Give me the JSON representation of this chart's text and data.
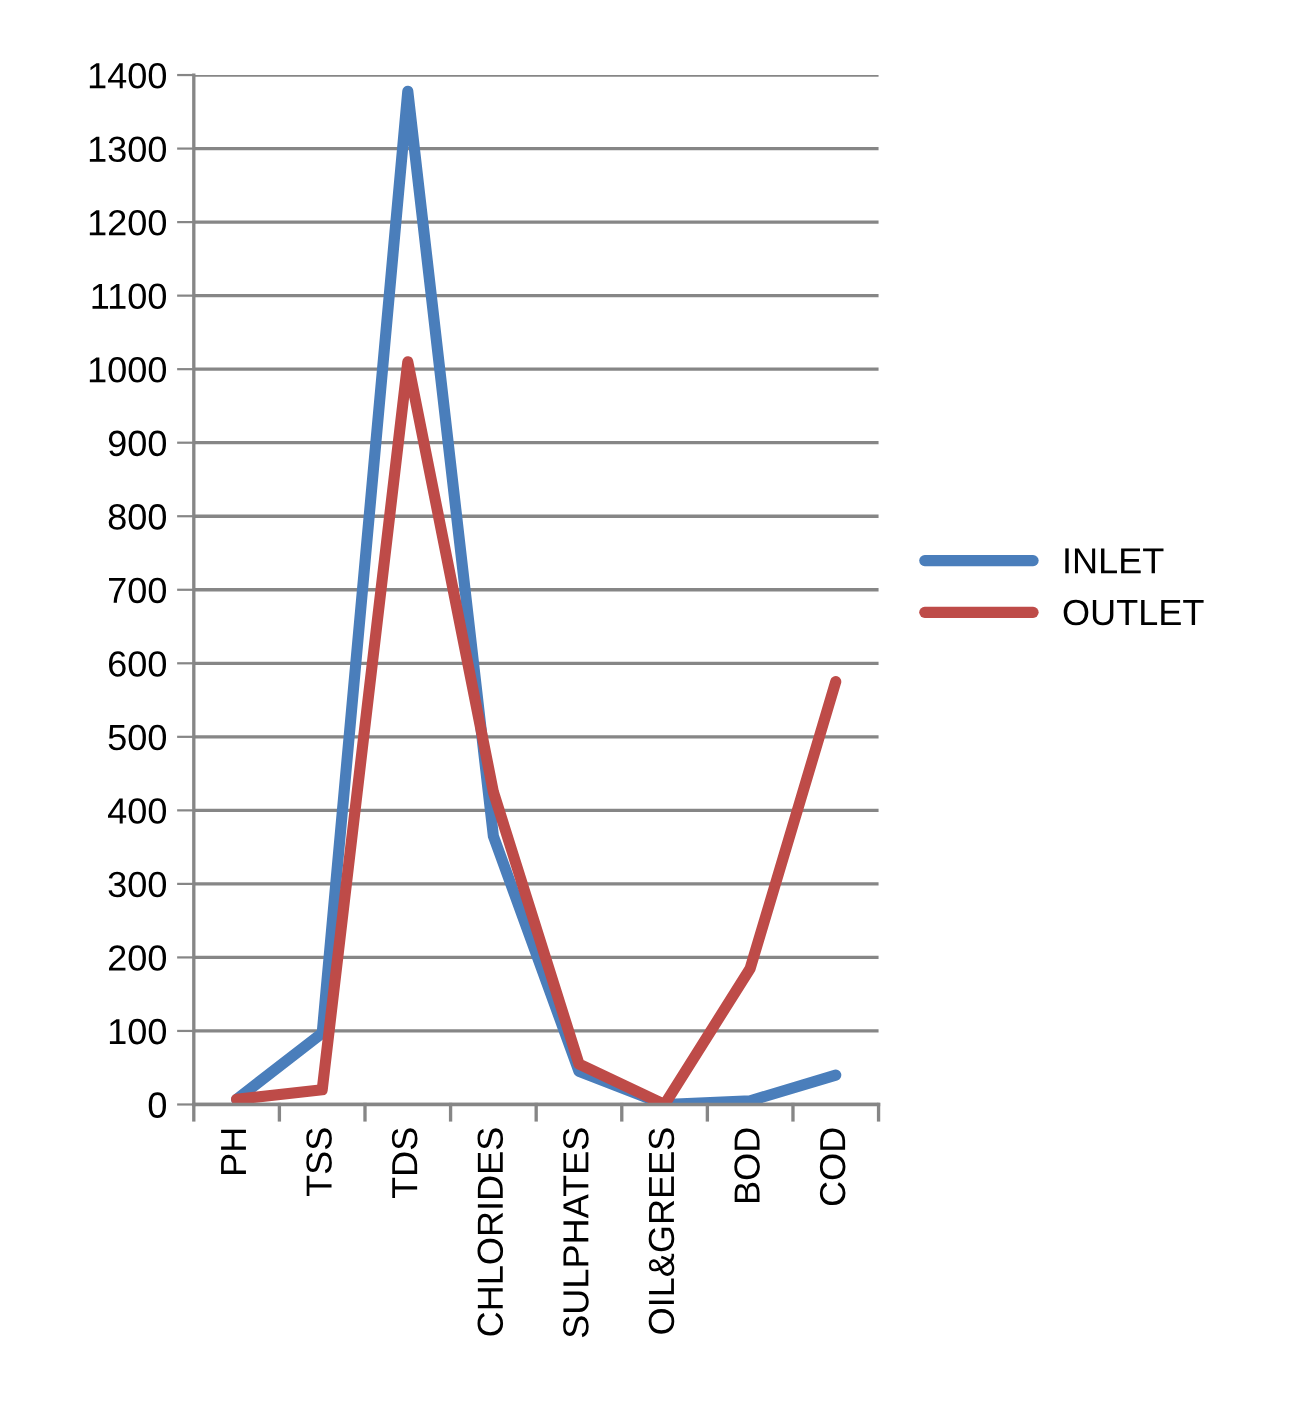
{
  "chart_data": {
    "type": "line",
    "categories": [
      "PH",
      "TSS",
      "TDS",
      "CHLORIDES",
      "SULPHATES",
      "OIL&GREES",
      "BOD",
      "COD"
    ],
    "series": [
      {
        "name": "INLET",
        "color": "#4a7ebb",
        "values": [
          7,
          97,
          1378,
          365,
          45,
          0,
          5,
          40
        ]
      },
      {
        "name": "OUTLET",
        "color": "#be4b48",
        "values": [
          7,
          20,
          1010,
          425,
          55,
          0,
          185,
          575
        ]
      }
    ],
    "ylim": [
      0,
      1400
    ],
    "yticks": [
      0,
      100,
      200,
      300,
      400,
      500,
      600,
      700,
      800,
      900,
      1000,
      1100,
      1200,
      1300,
      1400
    ],
    "grid": "y",
    "legend": "right",
    "marker": "none",
    "line_style": "solid"
  }
}
